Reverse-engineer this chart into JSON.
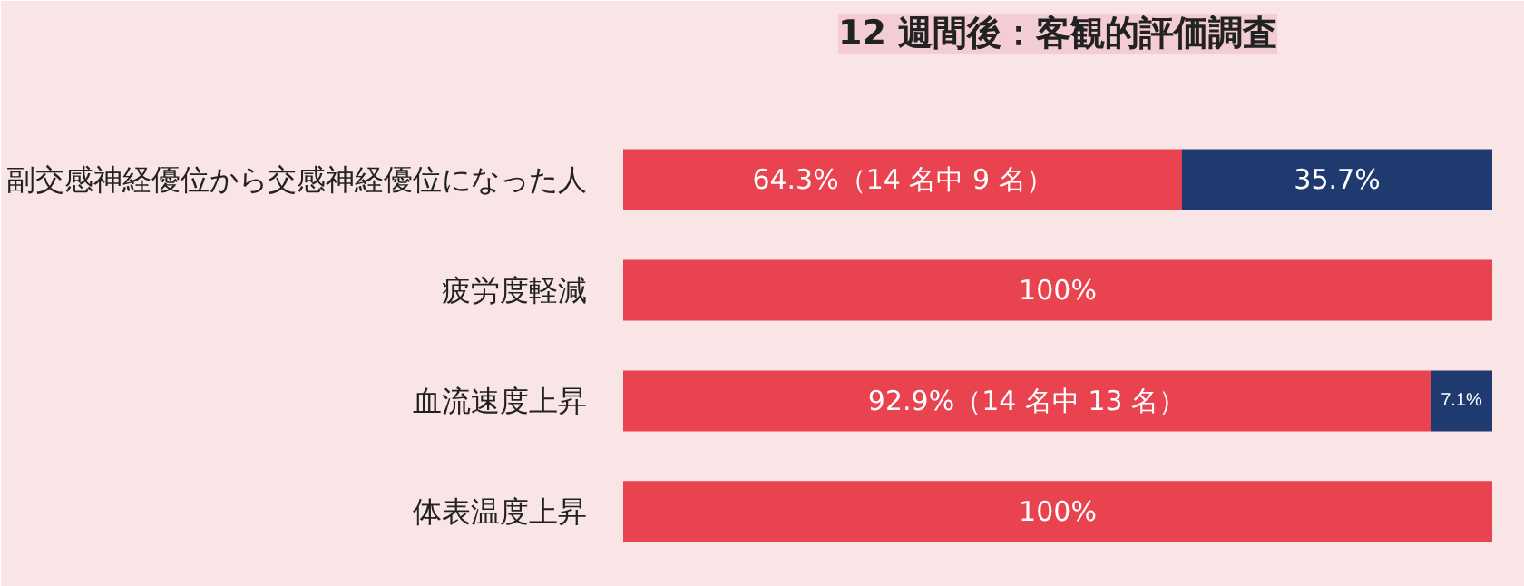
{
  "chart_data": {
    "type": "bar",
    "title": "12 週間後：客観的評価調査",
    "orientation": "horizontal",
    "stacked": true,
    "categories": [
      "副交感神経優位から交感神経優位になった人",
      "疲労度軽減",
      "血流速度上昇",
      "体表温度上昇"
    ],
    "series": [
      {
        "color": "#e8434f",
        "values": [
          64.3,
          100,
          92.9,
          100
        ],
        "value_labels": [
          "64.3%（14 名中 9 名）",
          "100%",
          "92.9%（14 名中 13 名）",
          "100%"
        ]
      },
      {
        "color": "#1f3a6e",
        "values": [
          35.7,
          null,
          7.1,
          null
        ],
        "value_labels": [
          "35.7%",
          null,
          "7.1%",
          null
        ]
      }
    ],
    "xlim": [
      0,
      100
    ],
    "tick_labels": "y",
    "grid": false
  }
}
